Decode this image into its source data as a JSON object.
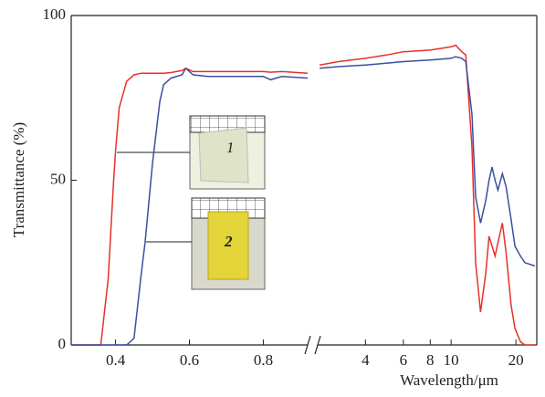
{
  "chart_data": [
    {
      "type": "line",
      "ylabel": "Transmittance (%)",
      "x": [
        0.28,
        0.36,
        0.38,
        0.395,
        0.4,
        0.41,
        0.43,
        0.45,
        0.47,
        0.48,
        0.5,
        0.52,
        0.53,
        0.55,
        0.58,
        0.59,
        0.61,
        0.65,
        0.7,
        0.8,
        0.82,
        0.85,
        0.92
      ],
      "series": [
        {
          "name": "1",
          "color": "#e8302a",
          "values": [
            0,
            0,
            20,
            50,
            59,
            72,
            80,
            82,
            82.5,
            82.5,
            82.5,
            82.5,
            82.5,
            82.7,
            83.3,
            84,
            83,
            83,
            83,
            83,
            82.8,
            83,
            82.5
          ]
        },
        {
          "name": "2",
          "color": "#3a4fa0",
          "values": [
            0,
            0,
            0,
            0,
            0,
            0,
            0,
            2,
            22,
            31,
            55,
            74,
            79,
            81,
            82,
            84,
            82,
            81.5,
            81.5,
            81.5,
            80.5,
            81.5,
            81
          ]
        }
      ],
      "xlim": [
        0.28,
        0.92
      ],
      "xticks": [
        0.4,
        0.6,
        0.8
      ],
      "ylim": [
        0,
        100
      ],
      "yticks": [
        0,
        50,
        100
      ],
      "annotations": [
        {
          "text": "1"
        },
        {
          "text": "2"
        }
      ]
    },
    {
      "type": "line",
      "xscale": "log",
      "xlabel": "Wavelength/μm",
      "x": [
        2.45,
        3,
        4,
        5,
        6,
        8,
        10,
        10.5,
        11.2,
        11.7,
        12.5,
        13,
        13.7,
        14.5,
        15,
        15.5,
        16,
        16.5,
        17.3,
        18,
        19,
        19.8,
        21,
        22,
        24.5
      ],
      "series": [
        {
          "name": "1",
          "color": "#e8302a",
          "values": [
            85,
            86,
            87,
            88,
            89,
            89.5,
            90.5,
            91,
            89,
            88,
            60,
            25,
            10,
            22,
            33,
            30,
            27,
            31,
            37,
            28,
            12,
            5,
            1,
            0,
            0
          ]
        },
        {
          "name": "2",
          "color": "#3a4fa0",
          "values": [
            84,
            84.5,
            85,
            85.5,
            86,
            86.5,
            87,
            87.5,
            87,
            86,
            70,
            45,
            37,
            44,
            50,
            54,
            50,
            47,
            52,
            48,
            38,
            30,
            27,
            25,
            24
          ]
        }
      ],
      "xlim": [
        2.4,
        25
      ],
      "xticks": [
        4,
        6,
        8,
        10,
        20
      ],
      "ylim": [
        0,
        100
      ]
    }
  ]
}
